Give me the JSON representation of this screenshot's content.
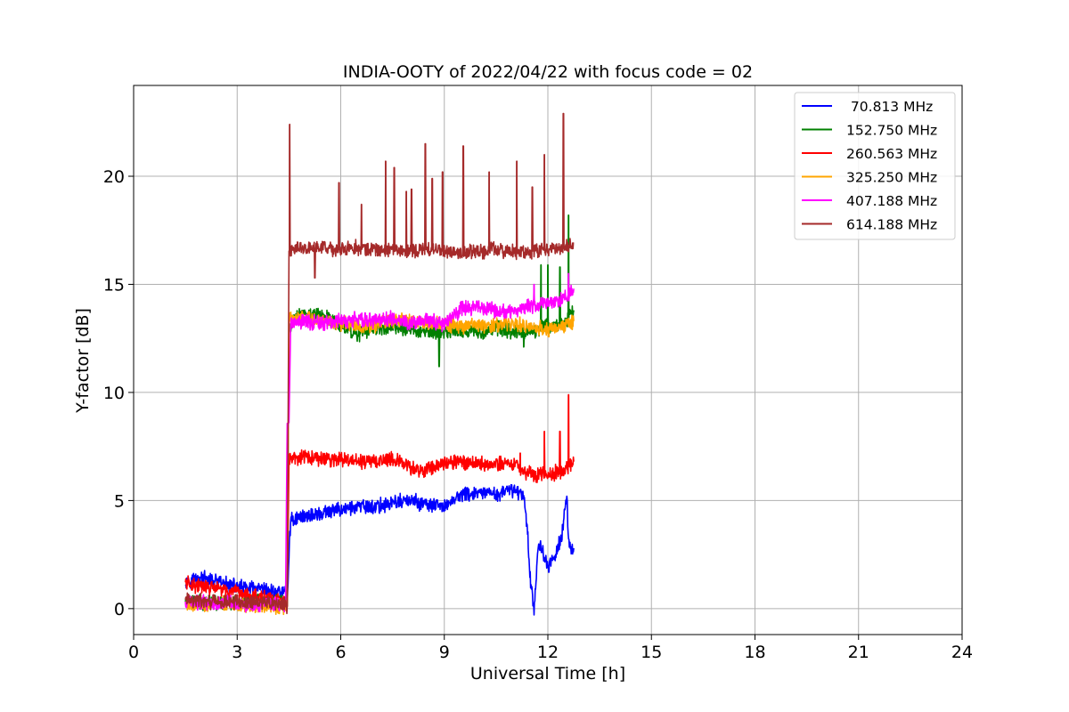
{
  "chart_data": {
    "type": "line",
    "title": "INDIA-OOTY of 2022/04/22 with focus code = 02",
    "xlabel": "Universal Time [h]",
    "ylabel": "Y-factor [dB]",
    "xlim": [
      0,
      24
    ],
    "ylim": [
      -1.2,
      24.2
    ],
    "x_ticks": [
      0,
      3,
      6,
      9,
      12,
      15,
      18,
      21,
      24
    ],
    "x_tick_labels": [
      "0",
      "3",
      "6",
      "9",
      "12",
      "15",
      "18",
      "21",
      "24"
    ],
    "y_ticks": [
      0,
      5,
      10,
      15,
      20
    ],
    "y_tick_labels": [
      "0",
      "5",
      "10",
      "15",
      "20"
    ],
    "grid": true,
    "legend_position": "top-right",
    "series": [
      {
        "name": " 70.813 MHz",
        "color": "#0000ff",
        "points": [
          [
            1.5,
            1.3
          ],
          [
            2.0,
            1.4
          ],
          [
            2.5,
            1.2
          ],
          [
            3.0,
            1.0
          ],
          [
            3.5,
            0.9
          ],
          [
            4.0,
            0.8
          ],
          [
            4.4,
            0.8
          ],
          [
            4.45,
            0.1
          ],
          [
            4.5,
            2.6
          ],
          [
            4.55,
            4.1
          ],
          [
            5.0,
            4.3
          ],
          [
            5.5,
            4.4
          ],
          [
            6.0,
            4.6
          ],
          [
            6.5,
            4.7
          ],
          [
            7.0,
            4.7
          ],
          [
            7.5,
            4.9
          ],
          [
            8.0,
            5.0
          ],
          [
            8.5,
            4.8
          ],
          [
            9.0,
            4.7
          ],
          [
            9.3,
            5.1
          ],
          [
            9.6,
            5.3
          ],
          [
            10.0,
            5.3
          ],
          [
            10.5,
            5.3
          ],
          [
            11.0,
            5.5
          ],
          [
            11.3,
            5.3
          ],
          [
            11.4,
            3.8
          ],
          [
            11.5,
            1.2
          ],
          [
            11.6,
            0.0
          ],
          [
            11.7,
            2.5
          ],
          [
            11.8,
            3.0
          ],
          [
            12.0,
            1.8
          ],
          [
            12.2,
            2.5
          ],
          [
            12.4,
            3.3
          ],
          [
            12.55,
            5.2
          ],
          [
            12.6,
            3.0
          ],
          [
            12.75,
            2.8
          ]
        ],
        "spikes": [
          [
            12.55,
            5.2
          ]
        ]
      },
      {
        "name": "152.750 MHz",
        "color": "#008000",
        "points": [
          [
            1.5,
            0.3
          ],
          [
            2.5,
            0.3
          ],
          [
            3.5,
            0.3
          ],
          [
            4.4,
            0.4
          ],
          [
            4.45,
            0.1
          ],
          [
            4.5,
            13.0
          ],
          [
            4.8,
            13.7
          ],
          [
            5.0,
            13.6
          ],
          [
            5.5,
            13.6
          ],
          [
            6.0,
            13.1
          ],
          [
            6.5,
            12.7
          ],
          [
            7.0,
            13.0
          ],
          [
            7.5,
            13.0
          ],
          [
            8.0,
            12.9
          ],
          [
            8.5,
            12.8
          ],
          [
            9.0,
            12.8
          ],
          [
            9.5,
            12.9
          ],
          [
            10.0,
            12.8
          ],
          [
            10.5,
            13.0
          ],
          [
            11.0,
            12.8
          ],
          [
            11.5,
            12.8
          ],
          [
            12.0,
            13.1
          ],
          [
            12.5,
            13.2
          ],
          [
            12.75,
            13.8
          ]
        ],
        "spikes": [
          [
            8.85,
            11.2
          ],
          [
            11.3,
            12.1
          ],
          [
            11.8,
            15.9
          ],
          [
            12.0,
            15.9
          ],
          [
            12.35,
            15.8
          ],
          [
            12.6,
            18.2
          ]
        ]
      },
      {
        "name": "260.563 MHz",
        "color": "#ff0000",
        "points": [
          [
            1.5,
            1.2
          ],
          [
            2.0,
            1.0
          ],
          [
            2.5,
            0.9
          ],
          [
            3.0,
            0.7
          ],
          [
            3.5,
            0.6
          ],
          [
            4.0,
            0.4
          ],
          [
            4.4,
            0.3
          ],
          [
            4.45,
            0.1
          ],
          [
            4.5,
            6.9
          ],
          [
            5.0,
            7.0
          ],
          [
            5.5,
            6.9
          ],
          [
            6.0,
            6.9
          ],
          [
            6.5,
            6.8
          ],
          [
            7.0,
            6.8
          ],
          [
            7.5,
            7.0
          ],
          [
            8.0,
            6.5
          ],
          [
            8.5,
            6.4
          ],
          [
            9.0,
            6.8
          ],
          [
            9.5,
            6.8
          ],
          [
            10.0,
            6.7
          ],
          [
            10.5,
            6.7
          ],
          [
            11.0,
            6.7
          ],
          [
            11.5,
            6.2
          ],
          [
            12.0,
            6.2
          ],
          [
            12.5,
            6.4
          ],
          [
            12.75,
            6.8
          ]
        ],
        "spikes": [
          [
            11.2,
            7.2
          ],
          [
            11.9,
            8.2
          ],
          [
            12.35,
            8.2
          ],
          [
            12.6,
            9.9
          ]
        ]
      },
      {
        "name": "325.250 MHz",
        "color": "#ffa500",
        "points": [
          [
            1.5,
            0.2
          ],
          [
            2.5,
            0.2
          ],
          [
            3.5,
            0.1
          ],
          [
            4.4,
            0.1
          ],
          [
            4.45,
            0.1
          ],
          [
            4.5,
            13.4
          ],
          [
            5.0,
            13.5
          ],
          [
            5.5,
            13.3
          ],
          [
            6.0,
            13.2
          ],
          [
            6.5,
            13.1
          ],
          [
            7.0,
            13.1
          ],
          [
            7.5,
            13.3
          ],
          [
            8.0,
            13.3
          ],
          [
            8.5,
            13.2
          ],
          [
            9.0,
            13.2
          ],
          [
            9.5,
            13.0
          ],
          [
            10.0,
            13.1
          ],
          [
            10.5,
            13.1
          ],
          [
            11.0,
            13.2
          ],
          [
            11.5,
            13.0
          ],
          [
            12.0,
            12.9
          ],
          [
            12.5,
            13.1
          ],
          [
            12.75,
            13.3
          ]
        ],
        "spikes": []
      },
      {
        "name": "407.188 MHz",
        "color": "#ff00ff",
        "points": [
          [
            1.5,
            0.3
          ],
          [
            2.5,
            0.3
          ],
          [
            3.5,
            0.2
          ],
          [
            4.4,
            0.2
          ],
          [
            4.45,
            8.3
          ],
          [
            4.5,
            8.6
          ],
          [
            4.55,
            13.2
          ],
          [
            5.0,
            13.3
          ],
          [
            5.5,
            13.2
          ],
          [
            6.0,
            13.3
          ],
          [
            6.5,
            13.4
          ],
          [
            7.0,
            13.3
          ],
          [
            7.5,
            13.4
          ],
          [
            8.0,
            13.2
          ],
          [
            8.5,
            13.4
          ],
          [
            9.0,
            13.1
          ],
          [
            9.5,
            13.9
          ],
          [
            10.0,
            13.9
          ],
          [
            10.5,
            13.8
          ],
          [
            11.0,
            13.7
          ],
          [
            11.5,
            14.0
          ],
          [
            12.0,
            14.1
          ],
          [
            12.5,
            14.4
          ],
          [
            12.75,
            14.8
          ]
        ],
        "spikes": [
          [
            11.6,
            15.0
          ],
          [
            12.6,
            15.5
          ]
        ]
      },
      {
        "name": "614.188 MHz",
        "color": "#a52a2a",
        "points": [
          [
            1.5,
            0.4
          ],
          [
            2.5,
            0.3
          ],
          [
            3.5,
            0.3
          ],
          [
            4.4,
            0.2
          ],
          [
            4.45,
            0.1
          ],
          [
            4.5,
            16.6
          ],
          [
            5.0,
            16.7
          ],
          [
            5.5,
            16.7
          ],
          [
            6.0,
            16.6
          ],
          [
            6.5,
            16.7
          ],
          [
            7.0,
            16.6
          ],
          [
            7.5,
            16.6
          ],
          [
            8.0,
            16.5
          ],
          [
            8.5,
            16.6
          ],
          [
            9.0,
            16.5
          ],
          [
            9.5,
            16.5
          ],
          [
            10.0,
            16.5
          ],
          [
            10.5,
            16.6
          ],
          [
            11.0,
            16.5
          ],
          [
            11.5,
            16.5
          ],
          [
            12.0,
            16.6
          ],
          [
            12.5,
            16.7
          ],
          [
            12.75,
            16.9
          ]
        ],
        "spikes": [
          [
            4.52,
            22.4
          ],
          [
            5.25,
            15.3
          ],
          [
            5.95,
            19.7
          ],
          [
            6.6,
            18.7
          ],
          [
            7.3,
            20.7
          ],
          [
            7.55,
            20.4
          ],
          [
            7.9,
            19.3
          ],
          [
            8.05,
            19.4
          ],
          [
            8.45,
            21.5
          ],
          [
            8.65,
            19.9
          ],
          [
            8.95,
            20.2
          ],
          [
            9.55,
            21.4
          ],
          [
            10.3,
            20.2
          ],
          [
            11.1,
            20.7
          ],
          [
            11.55,
            19.5
          ],
          [
            11.9,
            21.0
          ],
          [
            12.45,
            22.9
          ]
        ]
      }
    ]
  }
}
